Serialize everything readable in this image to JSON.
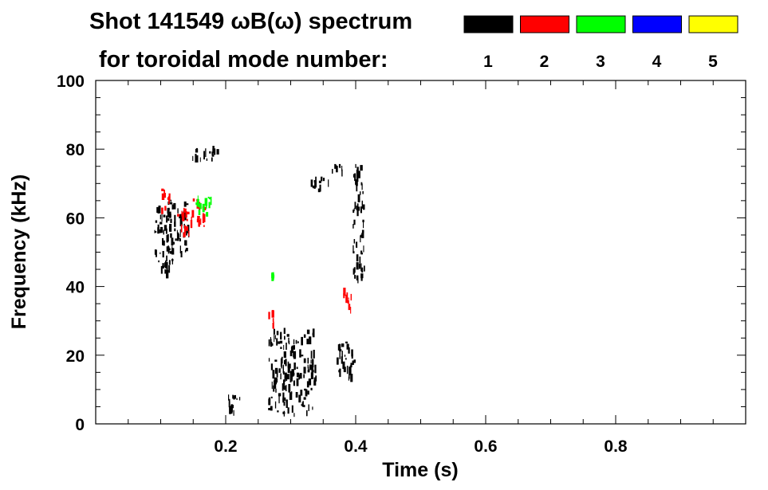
{
  "chart_data": {
    "type": "heatmap",
    "title_line1": "Shot 141549 ωB(ω) spectrum",
    "title_line2": "for toroidal mode number:",
    "xlabel": "Time (s)",
    "ylabel": "Frequency (kHz)",
    "xlim": [
      0.0,
      1.0
    ],
    "ylim": [
      0,
      100
    ],
    "x_ticks": [
      0.2,
      0.4,
      0.6,
      0.8
    ],
    "x_tick_labels": [
      "0.2",
      "0.4",
      "0.6",
      "0.8"
    ],
    "y_ticks": [
      0,
      20,
      40,
      60,
      80,
      100
    ],
    "y_tick_labels": [
      "0",
      "20",
      "40",
      "60",
      "80",
      "100"
    ],
    "legend": [
      {
        "label": "1",
        "color": "#000000"
      },
      {
        "label": "2",
        "color": "#ff0000"
      },
      {
        "label": "3",
        "color": "#00ff00"
      },
      {
        "label": "4",
        "color": "#0000ff"
      },
      {
        "label": "5",
        "color": "#ffff00"
      }
    ],
    "regions": [
      {
        "mode": 1,
        "t": [
          0.09,
          0.12
        ],
        "f": [
          42,
          64
        ]
      },
      {
        "mode": 1,
        "t": [
          0.11,
          0.145
        ],
        "f": [
          48,
          66
        ]
      },
      {
        "mode": 1,
        "t": [
          0.145,
          0.19
        ],
        "f": [
          76,
          81
        ]
      },
      {
        "mode": 1,
        "t": [
          0.2,
          0.225
        ],
        "f": [
          2,
          9
        ]
      },
      {
        "mode": 1,
        "t": [
          0.265,
          0.34
        ],
        "f": [
          2,
          28
        ]
      },
      {
        "mode": 1,
        "t": [
          0.33,
          0.36
        ],
        "f": [
          67,
          72
        ]
      },
      {
        "mode": 1,
        "t": [
          0.355,
          0.38
        ],
        "f": [
          72,
          76
        ]
      },
      {
        "mode": 1,
        "t": [
          0.37,
          0.4
        ],
        "f": [
          11,
          24
        ]
      },
      {
        "mode": 1,
        "t": [
          0.395,
          0.415
        ],
        "f": [
          40,
          76
        ]
      },
      {
        "mode": 2,
        "t": [
          0.1,
          0.115
        ],
        "f": [
          61,
          69
        ]
      },
      {
        "mode": 2,
        "t": [
          0.125,
          0.145
        ],
        "f": [
          54,
          64
        ]
      },
      {
        "mode": 2,
        "t": [
          0.145,
          0.17
        ],
        "f": [
          57,
          66
        ]
      },
      {
        "mode": 2,
        "t": [
          0.265,
          0.275
        ],
        "f": [
          27,
          35
        ]
      },
      {
        "mode": 2,
        "t": [
          0.38,
          0.395
        ],
        "f": [
          32,
          40
        ]
      },
      {
        "mode": 3,
        "t": [
          0.15,
          0.18
        ],
        "f": [
          60,
          67
        ]
      },
      {
        "mode": 3,
        "t": [
          0.27,
          0.275
        ],
        "f": [
          42,
          44
        ]
      }
    ]
  }
}
